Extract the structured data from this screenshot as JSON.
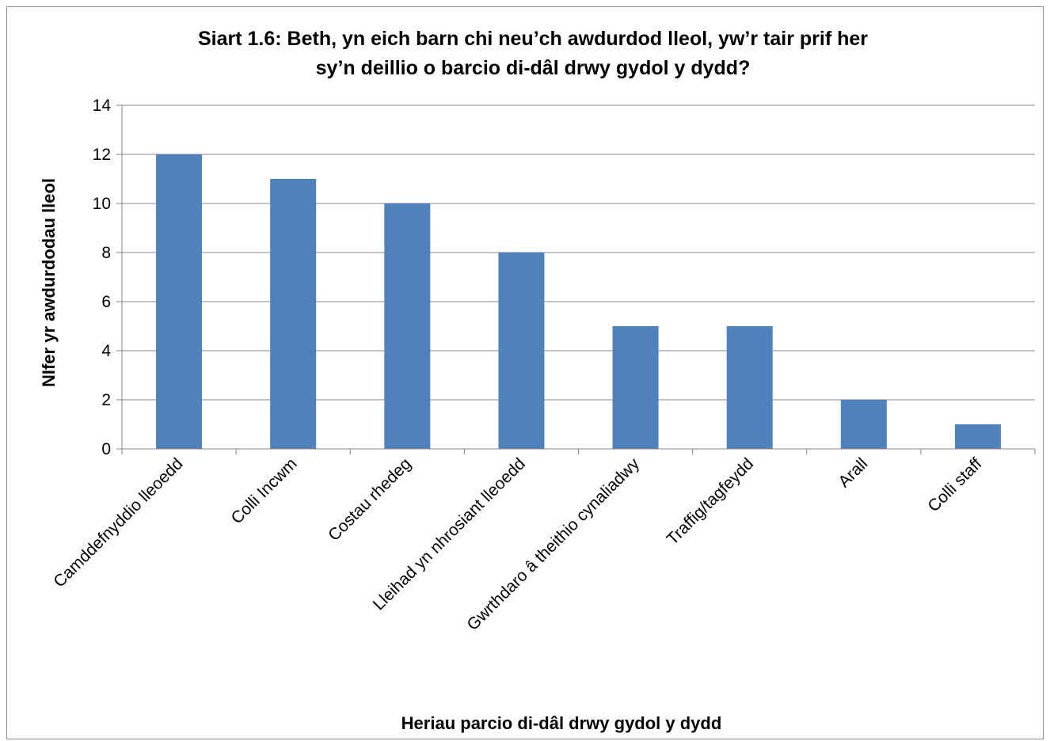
{
  "chart_data": {
    "type": "bar",
    "title_line1": "Siart 1.6: Beth, yn eich barn chi neu’ch awdurdod lleol, yw’r tair prif her",
    "title_line2": "sy’n deillio o barcio di-dâl drwy gydol y dydd?",
    "xlabel": "Heriau parcio di-dâl drwy gydol y dydd",
    "ylabel": "NIfer yr  awdurdodau lleol",
    "categories": [
      "Camddefnyddio lleoedd",
      "Colli Incwm",
      "Costau rhedeg",
      "Lleihad yn nhrosiant lleoedd",
      "Gwrthdaro â theithio cynaliadwy",
      "Traffig/tagfeydd",
      "Arall",
      "Colli staff"
    ],
    "values": [
      12,
      11,
      10,
      8,
      5,
      5,
      2,
      1
    ],
    "ylim": [
      0,
      14
    ],
    "yticks": [
      "0",
      "2",
      "4",
      "6",
      "8",
      "10",
      "12",
      "14"
    ],
    "grid": true,
    "legend": "none",
    "bar_color": "#4f81bd",
    "gridline_color": "#878787"
  }
}
